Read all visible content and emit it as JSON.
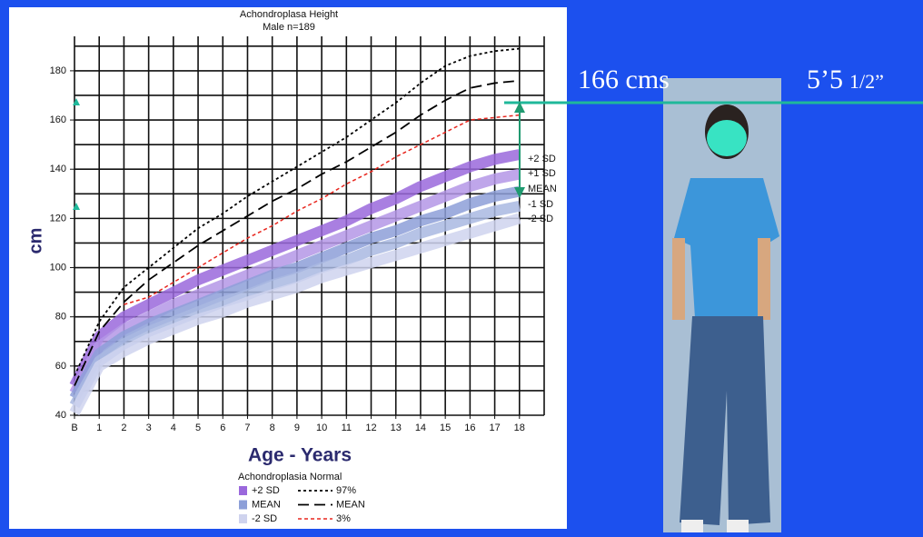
{
  "chart_data": {
    "type": "line",
    "title": "Achondroplasa Height",
    "subtitle": "Male n=189",
    "y_label": "cm",
    "x_label": "Age - Years",
    "legend_title": "Achondroplasia Normal",
    "x": [
      0,
      1,
      2,
      3,
      4,
      5,
      6,
      7,
      8,
      9,
      10,
      11,
      12,
      13,
      14,
      15,
      16,
      17,
      18
    ],
    "xlim": [
      0,
      19
    ],
    "xticks": [
      {
        "value": 0,
        "label": "B"
      },
      1,
      2,
      3,
      4,
      5,
      6,
      7,
      8,
      9,
      10,
      11,
      12,
      13,
      14,
      15,
      16,
      17,
      18
    ],
    "ylim": [
      40,
      194
    ],
    "yticks": [
      40,
      60,
      80,
      100,
      120,
      140,
      160,
      180
    ],
    "x_grid": [
      0,
      1,
      2,
      3,
      4,
      5,
      6,
      7,
      8,
      9,
      10,
      11,
      12,
      13,
      14,
      15,
      16,
      17,
      18,
      19
    ],
    "y_grid": [
      40,
      50,
      60,
      70,
      80,
      90,
      100,
      110,
      120,
      130,
      140,
      150,
      160,
      170,
      180,
      190
    ],
    "series": [
      {
        "name": "+2 SD",
        "color": "#9a68dc",
        "style": "band",
        "values": [
          52,
          72,
          80,
          85,
          90,
          95,
          99,
          103,
          107,
          111,
          115,
          119,
          124,
          128,
          133,
          137,
          141,
          144,
          146
        ]
      },
      {
        "name": "+1 SD",
        "color": "#b497e6",
        "style": "band",
        "values": [
          49,
          68,
          75,
          80,
          85,
          89,
          93,
          97,
          101,
          105,
          109,
          113,
          117,
          121,
          125,
          129,
          133,
          136,
          138
        ]
      },
      {
        "name": "MEAN",
        "color": "#8d9fd8",
        "style": "band",
        "values": [
          47,
          65,
          72,
          77,
          81,
          85,
          89,
          93,
          97,
          100,
          104,
          108,
          112,
          115,
          119,
          122,
          126,
          129,
          131
        ]
      },
      {
        "name": "-1 SD",
        "color": "#a9b8e2",
        "style": "band",
        "values": [
          44,
          62,
          69,
          74,
          78,
          82,
          86,
          89,
          93,
          96,
          100,
          103,
          107,
          110,
          114,
          117,
          120,
          123,
          125
        ]
      },
      {
        "name": "-2 SD",
        "color": "#cfd3ee",
        "style": "band",
        "values": [
          41,
          60,
          66,
          71,
          75,
          79,
          82,
          86,
          89,
          92,
          96,
          99,
          102,
          105,
          108,
          111,
          114,
          117,
          120
        ]
      },
      {
        "name": "97%",
        "color": "#000000",
        "style": "dotted",
        "values": [
          56,
          78,
          92,
          100,
          108,
          116,
          122,
          129,
          135,
          141,
          147,
          153,
          160,
          167,
          175,
          182,
          186,
          188,
          189
        ]
      },
      {
        "name": "MEAN",
        "color": "#000000",
        "style": "dashed",
        "values": [
          52,
          74,
          86,
          95,
          102,
          109,
          115,
          121,
          127,
          132,
          138,
          143,
          149,
          155,
          162,
          168,
          173,
          175,
          176
        ]
      },
      {
        "name": "3%",
        "color": "#e8261e",
        "style": "red-dashed",
        "values": [
          null,
          null,
          85,
          88,
          94,
          100,
          106,
          112,
          117,
          123,
          128,
          134,
          139,
          145,
          150,
          155,
          160,
          161,
          162
        ]
      }
    ],
    "annotations": [
      "166 cms",
      "5’5",
      "1/2”"
    ]
  }
}
